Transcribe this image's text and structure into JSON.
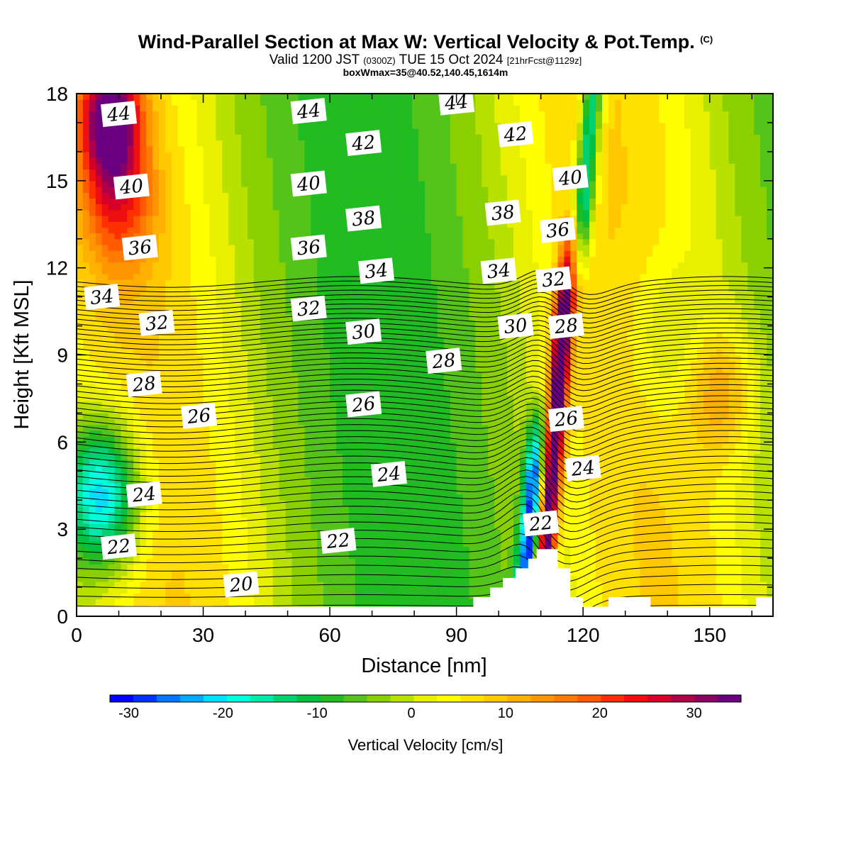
{
  "header": {
    "title": "Wind-Parallel Section at Max W: Vertical Velocity & Pot.Temp.",
    "title_mark": "(C)",
    "valid_a": "Valid 1200 JST",
    "valid_small": "(0300Z)",
    "valid_b": "TUE 15 Oct 2024",
    "valid_run": "[21hrFcst@1129z]",
    "box_info": "boxWmax=35@40.52,140.45,1614m"
  },
  "chart_data": {
    "type": "heatmap",
    "xlabel": "Distance [nm]",
    "ylabel": "Height [Kft MSL]",
    "xlim": [
      0,
      165
    ],
    "ylim": [
      0,
      18
    ],
    "xticks": [
      "0",
      "30",
      "60",
      "90",
      "120",
      "150"
    ],
    "yticks": [
      "0",
      "3",
      "6",
      "9",
      "12",
      "15",
      "18"
    ],
    "colorbar": {
      "label": "Vertical Velocity [cm/s]",
      "range": [
        -32,
        35
      ],
      "tick_values": [
        -30,
        -20,
        -10,
        0,
        10,
        20,
        30
      ],
      "tick_labels": [
        "-30",
        "-20",
        "-10",
        "0",
        "10",
        "20",
        "30"
      ],
      "colors": [
        "#0000ff",
        "#0033ff",
        "#0077ff",
        "#00aaff",
        "#00ddff",
        "#00ffdd",
        "#00e8aa",
        "#00d070",
        "#00c040",
        "#22bb22",
        "#55c41a",
        "#8ad000",
        "#b8e000",
        "#e8f000",
        "#ffff00",
        "#ffe000",
        "#ffc800",
        "#ffb000",
        "#ff9600",
        "#ff7a00",
        "#ff5a00",
        "#ff3000",
        "#ee1010",
        "#d4002a",
        "#b00048",
        "#8b0060",
        "#6a0080"
      ]
    },
    "contour_labels": [
      {
        "text": "44",
        "x": 10,
        "y": 17.3
      },
      {
        "text": "44",
        "x": 55,
        "y": 17.4
      },
      {
        "text": "44",
        "x": 90,
        "y": 17.7
      },
      {
        "text": "42",
        "x": 68,
        "y": 16.3
      },
      {
        "text": "42",
        "x": 104,
        "y": 16.6
      },
      {
        "text": "40",
        "x": 13,
        "y": 14.8
      },
      {
        "text": "40",
        "x": 55,
        "y": 14.9
      },
      {
        "text": "40",
        "x": 117,
        "y": 15.1
      },
      {
        "text": "38",
        "x": 68,
        "y": 13.7
      },
      {
        "text": "38",
        "x": 101,
        "y": 13.9
      },
      {
        "text": "36",
        "x": 15,
        "y": 12.7
      },
      {
        "text": "36",
        "x": 55,
        "y": 12.7
      },
      {
        "text": "36",
        "x": 114,
        "y": 13.3
      },
      {
        "text": "34",
        "x": 6,
        "y": 11.0
      },
      {
        "text": "34",
        "x": 71,
        "y": 11.9
      },
      {
        "text": "34",
        "x": 100,
        "y": 11.9
      },
      {
        "text": "32",
        "x": 19,
        "y": 10.1
      },
      {
        "text": "32",
        "x": 55,
        "y": 10.6
      },
      {
        "text": "32",
        "x": 113,
        "y": 11.6
      },
      {
        "text": "30",
        "x": 68,
        "y": 9.8
      },
      {
        "text": "30",
        "x": 104,
        "y": 10.0
      },
      {
        "text": "28",
        "x": 16,
        "y": 8.0
      },
      {
        "text": "28",
        "x": 87,
        "y": 8.8
      },
      {
        "text": "28",
        "x": 116,
        "y": 10.0
      },
      {
        "text": "26",
        "x": 29,
        "y": 6.9
      },
      {
        "text": "26",
        "x": 68,
        "y": 7.3
      },
      {
        "text": "26",
        "x": 116,
        "y": 6.8
      },
      {
        "text": "24",
        "x": 16,
        "y": 4.2
      },
      {
        "text": "24",
        "x": 74,
        "y": 4.9
      },
      {
        "text": "24",
        "x": 120,
        "y": 5.1
      },
      {
        "text": "22",
        "x": 10,
        "y": 2.4
      },
      {
        "text": "22",
        "x": 62,
        "y": 2.6
      },
      {
        "text": "22",
        "x": 110,
        "y": 3.2
      },
      {
        "text": "20",
        "x": 39,
        "y": 1.1
      }
    ]
  }
}
